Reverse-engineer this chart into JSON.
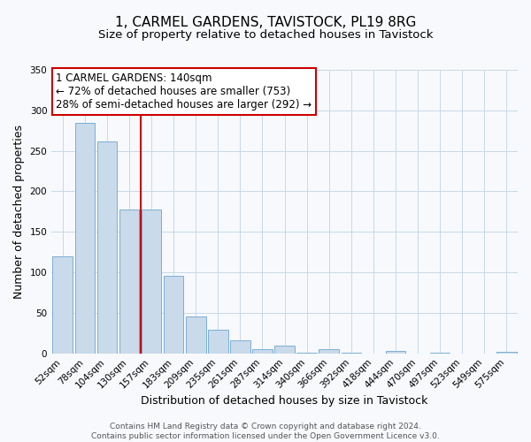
{
  "title": "1, CARMEL GARDENS, TAVISTOCK, PL19 8RG",
  "subtitle": "Size of property relative to detached houses in Tavistock",
  "xlabel": "Distribution of detached houses by size in Tavistock",
  "ylabel": "Number of detached properties",
  "bar_labels": [
    "52sqm",
    "78sqm",
    "104sqm",
    "130sqm",
    "157sqm",
    "183sqm",
    "209sqm",
    "235sqm",
    "261sqm",
    "287sqm",
    "314sqm",
    "340sqm",
    "366sqm",
    "392sqm",
    "418sqm",
    "444sqm",
    "470sqm",
    "497sqm",
    "523sqm",
    "549sqm",
    "575sqm"
  ],
  "bar_values": [
    120,
    285,
    262,
    178,
    178,
    96,
    45,
    29,
    16,
    5,
    9,
    1,
    5,
    1,
    0,
    3,
    0,
    1,
    0,
    0,
    2
  ],
  "bar_color": "#c9daea",
  "bar_edge_color": "#7bafd4",
  "vline_x_idx": 3,
  "vline_color": "#cc0000",
  "annotation_line1": "1 CARMEL GARDENS: 140sqm",
  "annotation_line2": "← 72% of detached houses are smaller (753)",
  "annotation_line3": "28% of semi-detached houses are larger (292) →",
  "annotation_box_edge_color": "#cc0000",
  "ylim": [
    0,
    350
  ],
  "yticks": [
    0,
    50,
    100,
    150,
    200,
    250,
    300,
    350
  ],
  "footer_line1": "Contains HM Land Registry data © Crown copyright and database right 2024.",
  "footer_line2": "Contains public sector information licensed under the Open Government Licence v3.0.",
  "background_color": "#f7f9fc",
  "grid_color": "#c8d8e8",
  "title_fontsize": 11,
  "subtitle_fontsize": 9.5,
  "axis_label_fontsize": 9,
  "tick_fontsize": 7.5,
  "annotation_fontsize": 8.5,
  "footer_fontsize": 6.5
}
